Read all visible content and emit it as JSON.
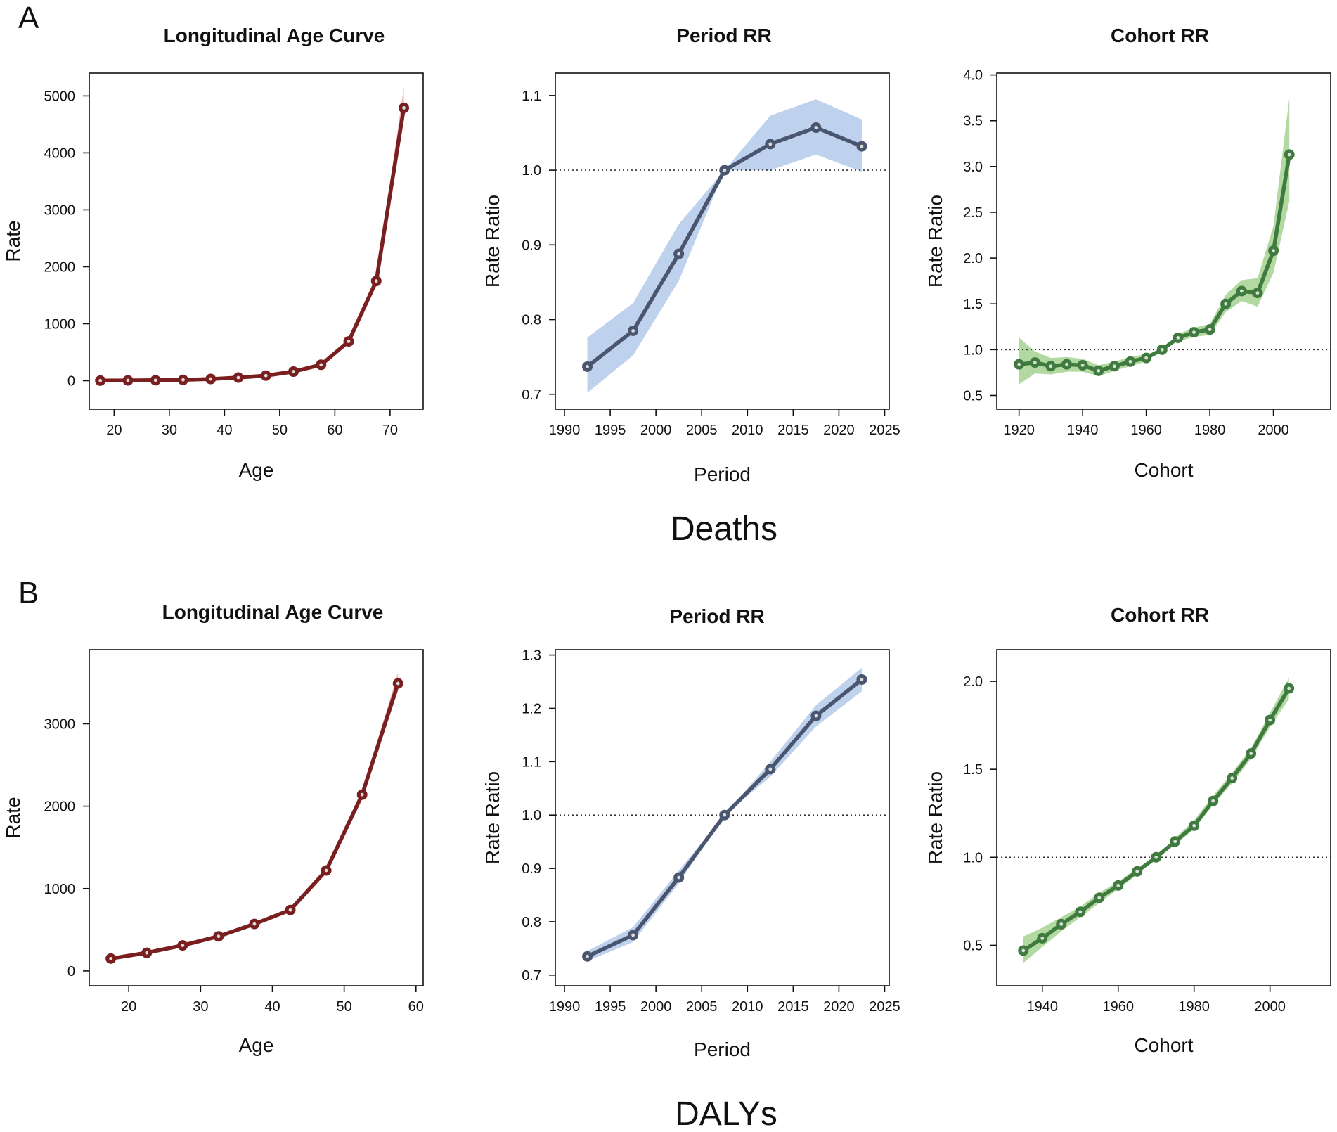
{
  "panels": [
    {
      "letter": "A",
      "group_label": "Deaths"
    },
    {
      "letter": "B",
      "group_label": "DALYs"
    }
  ],
  "colors": {
    "age_line": "#7a1f1f",
    "age_band": "#e89a9a",
    "period_line": "#4a5670",
    "period_band": "#aec6e8",
    "cohort_line": "#3f7a3f",
    "cohort_band": "#9fd08a"
  },
  "chart_data": [
    {
      "type": "line",
      "panel": "A",
      "kind": "age",
      "title": "Longitudinal Age Curve",
      "xlabel": "Age",
      "ylabel": "Rate",
      "xlim": [
        15.5,
        76
      ],
      "ylim": [
        -500,
        5400
      ],
      "xticks": [
        20,
        30,
        40,
        50,
        60,
        70
      ],
      "yticks": [
        0,
        1000,
        2000,
        3000,
        4000,
        5000
      ],
      "x": [
        17.5,
        22.5,
        27.5,
        32.5,
        37.5,
        42.5,
        47.5,
        52.5,
        57.5,
        62.5,
        67.5,
        72.5
      ],
      "y": [
        2,
        5,
        8,
        15,
        30,
        55,
        90,
        160,
        280,
        690,
        1750,
        4790
      ],
      "lower": [
        0,
        2,
        5,
        11,
        25,
        48,
        81,
        148,
        264,
        660,
        1700,
        4650
      ],
      "upper": [
        5,
        8,
        12,
        19,
        35,
        62,
        99,
        172,
        296,
        720,
        1800,
        5150
      ],
      "reference": null
    },
    {
      "type": "line",
      "panel": "A",
      "kind": "period",
      "title": "Period RR",
      "xlabel": "Period",
      "ylabel": "Rate Ratio",
      "xlim": [
        1989,
        2025.5
      ],
      "ylim": [
        0.68,
        1.13
      ],
      "xticks": [
        1990,
        1995,
        2000,
        2005,
        2010,
        2015,
        2020,
        2025
      ],
      "yticks": [
        0.7,
        0.8,
        0.9,
        1.0,
        1.1
      ],
      "x": [
        1992.5,
        1997.5,
        2002.5,
        2007.5,
        2012.5,
        2017.5,
        2022.5
      ],
      "y": [
        0.737,
        0.785,
        0.888,
        1.0,
        1.035,
        1.057,
        1.032
      ],
      "lower": [
        0.702,
        0.752,
        0.852,
        1.0,
        1.0,
        1.021,
        0.998
      ],
      "upper": [
        0.776,
        0.822,
        0.928,
        1.0,
        1.073,
        1.095,
        1.068
      ],
      "reference": 1.0
    },
    {
      "type": "line",
      "panel": "A",
      "kind": "cohort",
      "title": "Cohort RR",
      "xlabel": "Cohort",
      "ylabel": "Rate Ratio",
      "xlim": [
        1913,
        2018
      ],
      "ylim": [
        0.35,
        4.02
      ],
      "xticks": [
        1920,
        1940,
        1960,
        1980,
        2000
      ],
      "yticks": [
        0.5,
        1.0,
        1.5,
        2.0,
        2.5,
        3.0,
        3.5,
        4.0
      ],
      "x": [
        1920,
        1925,
        1930,
        1935,
        1940,
        1945,
        1950,
        1955,
        1960,
        1965,
        1970,
        1975,
        1980,
        1985,
        1990,
        1995,
        2000,
        2005
      ],
      "y": [
        0.84,
        0.86,
        0.82,
        0.84,
        0.83,
        0.77,
        0.82,
        0.87,
        0.91,
        1.0,
        1.13,
        1.19,
        1.22,
        1.5,
        1.64,
        1.62,
        2.08,
        3.13
      ],
      "lower": [
        0.62,
        0.74,
        0.73,
        0.76,
        0.76,
        0.71,
        0.77,
        0.82,
        0.87,
        1.0,
        1.09,
        1.14,
        1.16,
        1.41,
        1.53,
        1.47,
        1.84,
        2.62
      ],
      "upper": [
        1.13,
        0.98,
        0.91,
        0.92,
        0.9,
        0.83,
        0.87,
        0.92,
        0.95,
        1.0,
        1.17,
        1.24,
        1.28,
        1.6,
        1.76,
        1.78,
        2.35,
        3.75
      ],
      "reference": 1.0
    },
    {
      "type": "line",
      "panel": "B",
      "kind": "age",
      "title": "Longitudinal Age Curve",
      "xlabel": "Age",
      "ylabel": "Rate",
      "xlim": [
        14.5,
        61
      ],
      "ylim": [
        -180,
        3900
      ],
      "xticks": [
        20,
        30,
        40,
        50,
        60
      ],
      "yticks": [
        0,
        1000,
        2000,
        3000
      ],
      "x": [
        17.5,
        22.5,
        27.5,
        32.5,
        37.5,
        42.5,
        47.5,
        52.5,
        57.5
      ],
      "y": [
        150,
        220,
        310,
        420,
        570,
        740,
        1220,
        2140,
        3490
      ],
      "lower": [
        140,
        210,
        300,
        408,
        556,
        724,
        1195,
        2100,
        3400
      ],
      "upper": [
        160,
        230,
        320,
        432,
        584,
        756,
        1245,
        2180,
        3620
      ],
      "reference": null
    },
    {
      "type": "line",
      "panel": "B",
      "kind": "period",
      "title": "Period RR",
      "xlabel": "Period",
      "ylabel": "Rate Ratio",
      "xlim": [
        1989,
        2025.5
      ],
      "ylim": [
        0.68,
        1.31
      ],
      "xticks": [
        1990,
        1995,
        2000,
        2005,
        2010,
        2015,
        2020,
        2025
      ],
      "yticks": [
        0.7,
        0.8,
        0.9,
        1.0,
        1.1,
        1.2,
        1.3
      ],
      "x": [
        1992.5,
        1997.5,
        2002.5,
        2007.5,
        2012.5,
        2017.5,
        2022.5
      ],
      "y": [
        0.735,
        0.775,
        0.883,
        1.0,
        1.086,
        1.186,
        1.254
      ],
      "lower": [
        0.726,
        0.762,
        0.872,
        1.0,
        1.072,
        1.166,
        1.232
      ],
      "upper": [
        0.745,
        0.79,
        0.896,
        1.0,
        1.1,
        1.206,
        1.276
      ],
      "reference": 1.0
    },
    {
      "type": "line",
      "panel": "B",
      "kind": "cohort",
      "title": "Cohort RR",
      "xlabel": "Cohort",
      "ylabel": "Rate Ratio",
      "xlim": [
        1928,
        2016
      ],
      "ylim": [
        0.27,
        2.18
      ],
      "xticks": [
        1940,
        1960,
        1980,
        2000
      ],
      "yticks": [
        0.5,
        1.0,
        1.5,
        2.0
      ],
      "x": [
        1935,
        1940,
        1945,
        1950,
        1955,
        1960,
        1965,
        1970,
        1975,
        1980,
        1985,
        1990,
        1995,
        2000,
        2005
      ],
      "y": [
        0.47,
        0.54,
        0.62,
        0.69,
        0.77,
        0.84,
        0.92,
        1.0,
        1.09,
        1.18,
        1.32,
        1.45,
        1.59,
        1.78,
        1.96
      ],
      "lower": [
        0.4,
        0.49,
        0.58,
        0.66,
        0.74,
        0.82,
        0.9,
        1.0,
        1.07,
        1.16,
        1.3,
        1.42,
        1.56,
        1.74,
        1.9
      ],
      "upper": [
        0.55,
        0.6,
        0.66,
        0.72,
        0.8,
        0.86,
        0.94,
        1.0,
        1.11,
        1.21,
        1.35,
        1.48,
        1.62,
        1.82,
        2.02
      ],
      "reference": 1.0
    }
  ]
}
